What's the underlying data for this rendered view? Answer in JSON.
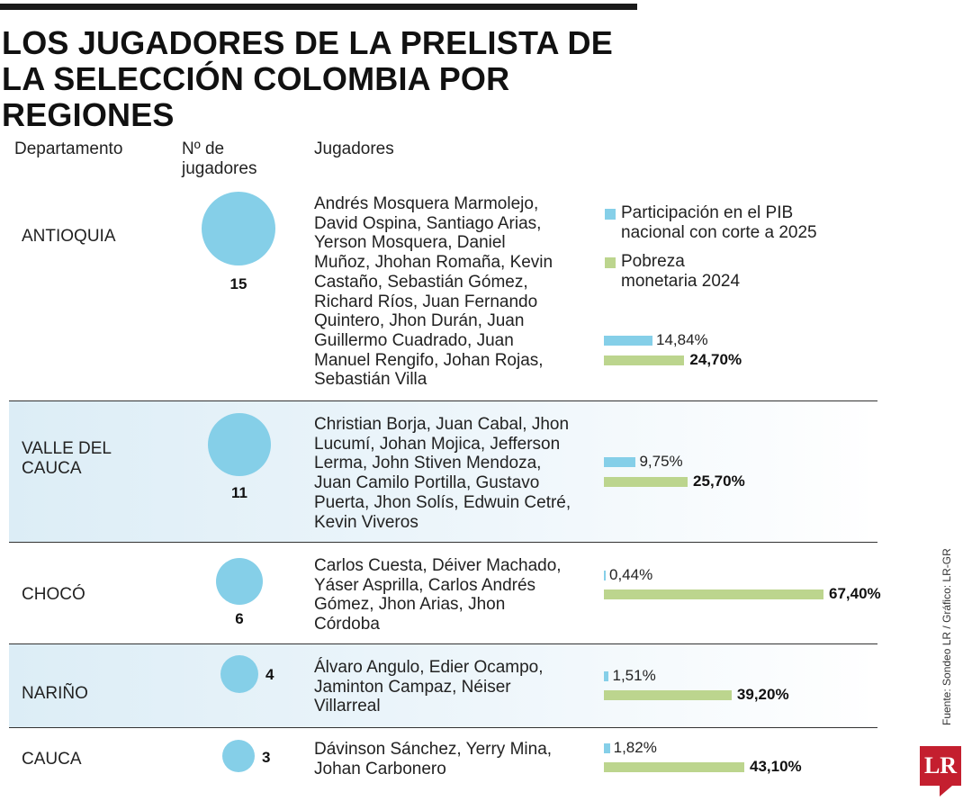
{
  "title": {
    "line1": "LOS JUGADORES DE LA PRELISTA DE",
    "line2": "LA SELECCIÓN COLOMBIA POR REGIONES"
  },
  "headers": {
    "department": "Departamento",
    "count_line1": "Nº de",
    "count_line2": "jugadores",
    "players": "Jugadores"
  },
  "legend": {
    "pib_line1": "Participación en el PIB",
    "pib_line2": "nacional con corte a 2025",
    "pov_line1": "Pobreza",
    "pov_line2": "monetaria 2024"
  },
  "colors": {
    "pib": "#85cfe8",
    "pov": "#bcd58e",
    "accent": "#c41f2f"
  },
  "source": "Fuente: Sondeo LR / Gráfico: LR-GR",
  "logo": "LR",
  "chart_data": {
    "type": "table",
    "series": [
      {
        "name": "Participación en el PIB nacional con corte a 2025",
        "unit": "%"
      },
      {
        "name": "Pobreza monetaria 2024",
        "unit": "%"
      }
    ],
    "rows": [
      {
        "department_lines": [
          "ANTIOQUIA"
        ],
        "count": 15,
        "players_lines": [
          "Andrés Mosquera Marmolejo,",
          "David Ospina, Santiago Arias,",
          "Yerson Mosquera, Daniel",
          "Muñoz, Jhohan Romaña, Kevin",
          "Castaño, Sebastián Gómez,",
          "Richard Ríos, Juan Fernando",
          "Quintero, Jhon Durán, Juan",
          "Guillermo Cuadrado, Juan",
          "Manuel Rengifo, Johan Rojas,",
          "Sebastián Villa"
        ],
        "pib": 14.84,
        "pib_label": "14,84%",
        "pov": 24.7,
        "pov_label": "24,70%"
      },
      {
        "department_lines": [
          "VALLE DEL",
          "CAUCA"
        ],
        "count": 11,
        "players_lines": [
          "Christian Borja, Juan Cabal, Jhon",
          "Lucumí, Johan Mojica, Jefferson",
          "Lerma, John Stiven Mendoza,",
          "Juan Camilo Portilla, Gustavo",
          "Puerta, Jhon Solís, Edwuin Cetré,",
          "Kevin Viveros"
        ],
        "pib": 9.75,
        "pib_label": "9,75%",
        "pov": 25.7,
        "pov_label": "25,70%"
      },
      {
        "department_lines": [
          "CHOCÓ"
        ],
        "count": 6,
        "players_lines": [
          "Carlos Cuesta, Déiver Machado,",
          "Yáser Asprilla, Carlos Andrés",
          "Gómez, Jhon Arias, Jhon",
          "Córdoba"
        ],
        "pib": 0.44,
        "pib_label": "0,44%",
        "pov": 67.4,
        "pov_label": "67,40%"
      },
      {
        "department_lines": [
          "NARIÑO"
        ],
        "count": 4,
        "players_lines": [
          "Álvaro Angulo, Edier Ocampo,",
          "Jaminton Campaz, Néiser",
          "Villarreal"
        ],
        "pib": 1.51,
        "pib_label": "1,51%",
        "pov": 39.2,
        "pov_label": "39,20%"
      },
      {
        "department_lines": [
          "CAUCA"
        ],
        "count": 3,
        "players_lines": [
          "Dávinson Sánchez, Yerry Mina,",
          "Johan Carbonero"
        ],
        "pib": 1.82,
        "pib_label": "1,82%",
        "pov": 43.1,
        "pov_label": "43,10%"
      }
    ]
  }
}
